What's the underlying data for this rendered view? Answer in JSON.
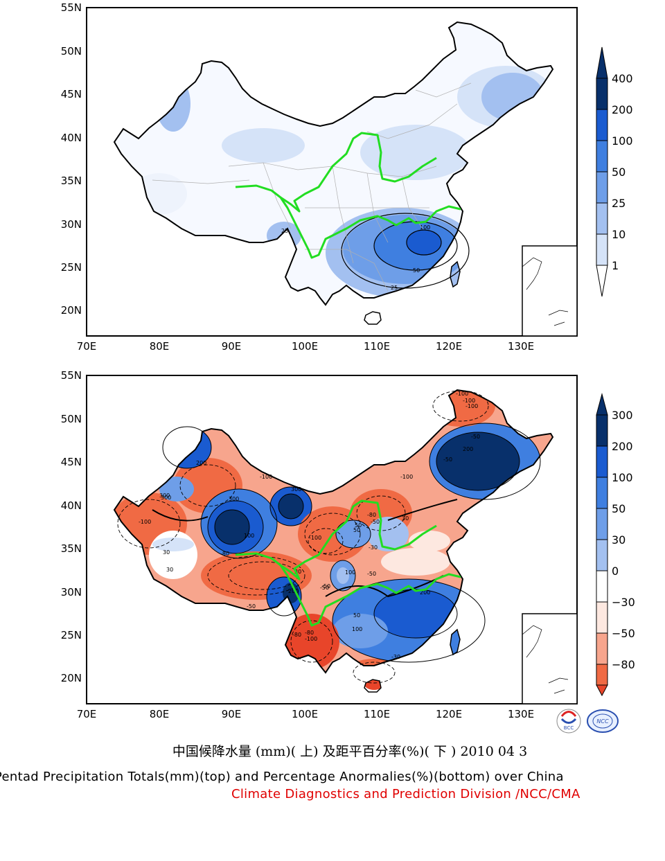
{
  "panels": {
    "top": {
      "lat_labels": [
        "55N",
        "50N",
        "45N",
        "40N",
        "35N",
        "30N",
        "25N",
        "20N"
      ],
      "lon_labels": [
        "70E",
        "80E",
        "90E",
        "100E",
        "110E",
        "120E",
        "130E"
      ],
      "colorbar": {
        "labels": [
          "400",
          "200",
          "100",
          "50",
          "25",
          "10",
          "1"
        ],
        "colors": [
          "#08306b",
          "#1a5bd0",
          "#3f7fe0",
          "#6e9ee8",
          "#a3c0f0",
          "#d5e3f8",
          "#ffffff"
        ]
      },
      "contour_labels": [
        "100",
        "50",
        "25",
        "25"
      ]
    },
    "bottom": {
      "lat_labels": [
        "55N",
        "50N",
        "45N",
        "40N",
        "35N",
        "30N",
        "25N",
        "20N"
      ],
      "lon_labels": [
        "70E",
        "80E",
        "90E",
        "100E",
        "110E",
        "120E",
        "130E"
      ],
      "colorbar": {
        "labels": [
          "300",
          "200",
          "100",
          "50",
          "30",
          "0",
          "−30",
          "−50",
          "−80"
        ],
        "colors": [
          "#08306b",
          "#1a5bd0",
          "#3f7fe0",
          "#6e9ee8",
          "#a3c0f0",
          "#ffffff",
          "#fde8e0",
          "#f7a58d",
          "#f06a44",
          "#e8452a"
        ]
      },
      "contour_labels": [
        "-100",
        "-100",
        "-100",
        "-50",
        "-50",
        "200",
        "300",
        "300",
        "300",
        "-100",
        "-80",
        "100",
        "50",
        "-50",
        "-30",
        "30",
        "-50",
        "-50",
        "200",
        "300",
        "100",
        "50",
        "-80",
        "-100",
        "-30",
        "-80",
        "30",
        "30",
        "50",
        "-100",
        "100",
        "-50",
        "-80",
        "30",
        "200",
        "200",
        "-100",
        "-100",
        "-50"
      ]
    }
  },
  "logos": {
    "left": "BCC",
    "right": "NCC"
  },
  "caption": {
    "chinese": "中国候降水量 (mm)( 上) 及距平百分率(%)( 下 ) 2010 04 3",
    "english": "Pentad Precipitation Totals(mm)(top) and Percentage Anormalies(%)(bottom) over China",
    "division": "Climate Diagnostics and Prediction Division /NCC/CMA"
  },
  "colors": {
    "river": "#22dd22",
    "division_text": "#e00000"
  }
}
